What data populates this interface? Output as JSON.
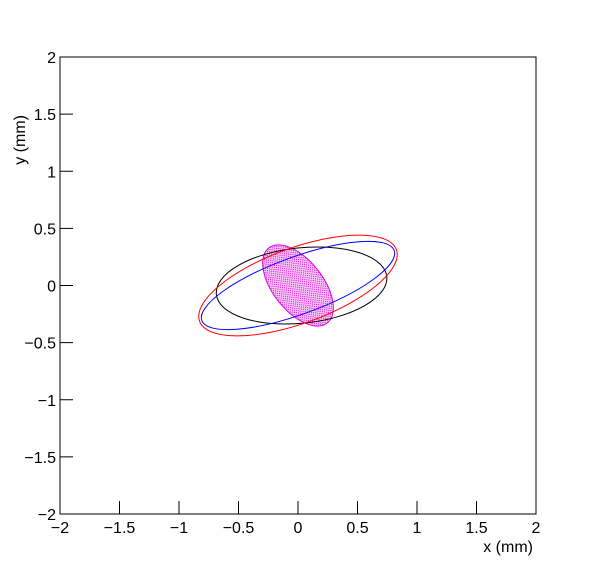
{
  "chart_data": {
    "type": "ellipse",
    "x_label": "x (mm)",
    "y_label": "y (mm)",
    "xlim": [
      -2,
      2
    ],
    "ylim": [
      -2,
      2
    ],
    "xticks": [
      {
        "value": -2,
        "label": "−2"
      },
      {
        "value": -1.5,
        "label": "−1.5"
      },
      {
        "value": -1,
        "label": "−1"
      },
      {
        "value": -0.5,
        "label": "−0.5"
      },
      0,
      0.5,
      1,
      1.5,
      2
    ],
    "yticks": [
      {
        "value": -2,
        "label": "−2"
      },
      {
        "value": -1.5,
        "label": "−1.5"
      },
      {
        "value": -1,
        "label": "−1"
      },
      {
        "value": -0.5,
        "label": "−0.5"
      },
      0,
      0.5,
      1,
      1.5,
      2
    ],
    "ellipses": [
      {
        "cx": 0.0,
        "cy": 0.0,
        "rx": 0.4,
        "ry": 0.22,
        "angle": -52,
        "color": "#e000e0",
        "filled": true
      },
      {
        "cx": 0.03,
        "cy": 0.0,
        "rx": 0.72,
        "ry": 0.33,
        "angle": 6,
        "color": "#000000",
        "filled": false
      },
      {
        "cx": 0.0,
        "cy": 0.0,
        "rx": 0.86,
        "ry": 0.25,
        "angle": 20,
        "color": "#0000ff",
        "filled": false
      },
      {
        "cx": 0.0,
        "cy": 0.0,
        "rx": 0.88,
        "ry": 0.33,
        "angle": 20,
        "color": "#ff0000",
        "filled": false
      }
    ]
  }
}
